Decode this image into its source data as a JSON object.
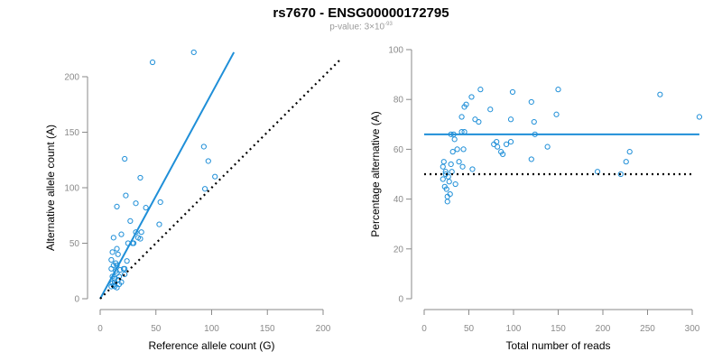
{
  "figure": {
    "title": "rs7670 - ENSG00000172795",
    "pvalue_prefix": "p-value: 3×10",
    "pvalue_exponent": "-93"
  },
  "colors": {
    "points": "#1f8fd8",
    "fit": "#1f8fd8",
    "reference": "#000000",
    "axis": "#8a8a8a"
  },
  "chart_data": [
    {
      "type": "scatter",
      "title": "",
      "xlabel": "Reference allele count (G)",
      "ylabel": "Alternative allele count (A)",
      "xlim": [
        0,
        200
      ],
      "ylim": [
        0,
        200
      ],
      "xticks": [
        0,
        50,
        100,
        150,
        200
      ],
      "yticks": [
        0,
        50,
        100,
        150,
        200
      ],
      "series": [
        {
          "name": "observations",
          "points": [
            [
              47,
              213
            ],
            [
              84,
              222
            ],
            [
              22,
              126
            ],
            [
              93,
              137
            ],
            [
              97,
              124
            ],
            [
              36,
              109
            ],
            [
              103,
              110
            ],
            [
              54,
              87
            ],
            [
              23,
              93
            ],
            [
              15,
              83
            ],
            [
              41,
              82
            ],
            [
              32,
              86
            ],
            [
              37,
              60
            ],
            [
              53,
              67
            ],
            [
              94,
              99
            ],
            [
              27,
              70
            ],
            [
              30,
              50
            ],
            [
              34,
              55
            ],
            [
              25,
              50
            ],
            [
              32,
              60
            ],
            [
              12,
              55
            ],
            [
              11,
              42
            ],
            [
              15,
              45
            ],
            [
              19,
              58
            ],
            [
              16,
              40
            ],
            [
              10,
              35
            ],
            [
              12,
              30
            ],
            [
              14,
              32
            ],
            [
              10,
              27
            ],
            [
              11,
              20
            ],
            [
              13,
              18
            ],
            [
              14,
              25
            ],
            [
              15,
              23
            ],
            [
              17,
              20
            ],
            [
              18,
              26
            ],
            [
              21,
              27
            ],
            [
              22,
              22
            ],
            [
              16,
              17
            ],
            [
              13,
              15
            ],
            [
              11,
              14
            ],
            [
              12,
              12
            ],
            [
              10,
              11
            ],
            [
              15,
              10
            ],
            [
              17,
              13
            ],
            [
              13,
              11
            ],
            [
              22,
              27
            ],
            [
              15,
              30
            ],
            [
              24,
              34
            ],
            [
              19,
              15
            ],
            [
              36,
              54
            ],
            [
              29,
              50
            ]
          ]
        },
        {
          "name": "fit",
          "line": [
            [
              0,
              0
            ],
            [
              120,
              222
            ]
          ]
        },
        {
          "name": "reference",
          "line": [
            [
              0,
              0
            ],
            [
              225,
              225
            ]
          ]
        }
      ]
    },
    {
      "type": "scatter",
      "title": "",
      "xlabel": "Total number of reads",
      "ylabel": "Percentage alternative (A)",
      "xlim": [
        0,
        300
      ],
      "ylim": [
        0,
        100
      ],
      "xticks": [
        0,
        50,
        100,
        150,
        200,
        250,
        300
      ],
      "yticks": [
        0,
        20,
        40,
        60,
        80,
        100
      ],
      "series": [
        {
          "name": "observations",
          "points": [
            [
              63,
              84
            ],
            [
              53,
              81
            ],
            [
              99,
              83
            ],
            [
              150,
              84
            ],
            [
              264,
              82
            ],
            [
              308,
              73
            ],
            [
              120,
              79
            ],
            [
              148,
              74
            ],
            [
              45,
              77
            ],
            [
              42,
              73
            ],
            [
              57,
              72
            ],
            [
              61,
              71
            ],
            [
              97,
              72
            ],
            [
              123,
              71
            ],
            [
              74,
              76
            ],
            [
              47,
              78
            ],
            [
              124,
              66
            ],
            [
              30,
              66
            ],
            [
              33,
              66
            ],
            [
              42,
              67
            ],
            [
              34,
              64
            ],
            [
              45,
              67
            ],
            [
              37,
              60
            ],
            [
              32,
              59
            ],
            [
              39,
              55
            ],
            [
              44,
              60
            ],
            [
              22,
              55
            ],
            [
              21,
              53
            ],
            [
              24,
              51
            ],
            [
              30,
              54
            ],
            [
              31,
              51
            ],
            [
              43,
              53
            ],
            [
              35,
              46
            ],
            [
              25,
              44
            ],
            [
              28,
              47
            ],
            [
              27,
              49
            ],
            [
              24,
              50
            ],
            [
              23,
              45
            ],
            [
              26,
              41
            ],
            [
              26,
              39
            ],
            [
              29,
              42
            ],
            [
              21,
              48
            ],
            [
              78,
              62
            ],
            [
              82,
              61
            ],
            [
              86,
              59
            ],
            [
              92,
              62
            ],
            [
              81,
              63
            ],
            [
              88,
              58
            ],
            [
              97,
              63
            ],
            [
              120,
              56
            ],
            [
              138,
              61
            ],
            [
              194,
              51
            ],
            [
              226,
              55
            ],
            [
              230,
              59
            ],
            [
              220,
              50
            ],
            [
              54,
              52
            ]
          ]
        },
        {
          "name": "fit",
          "line": [
            [
              0,
              66
            ],
            [
              308,
              66
            ]
          ]
        },
        {
          "name": "reference",
          "line": [
            [
              0,
              50
            ],
            [
              300,
              50
            ]
          ]
        }
      ]
    }
  ]
}
